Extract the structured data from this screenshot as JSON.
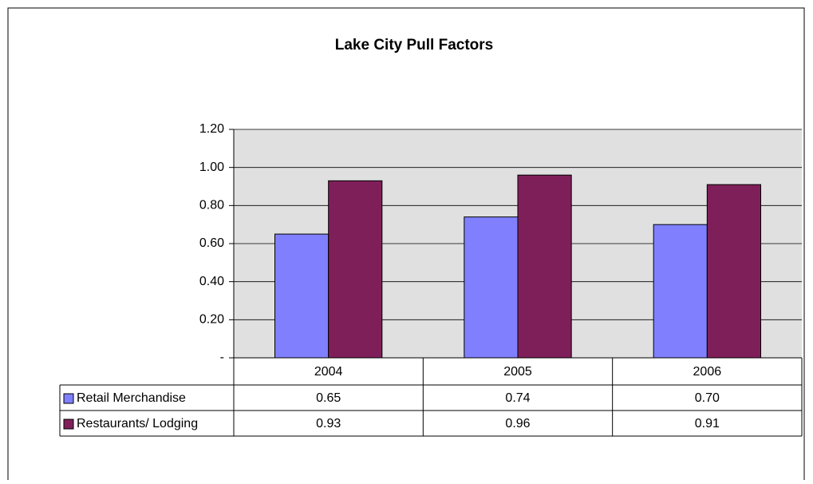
{
  "chart_data": {
    "type": "bar",
    "title": "Lake City Pull Factors",
    "categories": [
      "2004",
      "2005",
      "2006"
    ],
    "series": [
      {
        "name": "Retail Merchandise",
        "color": "#8080ff",
        "values": [
          0.65,
          0.74,
          0.7
        ],
        "value_labels": [
          "0.65",
          "0.74",
          "0.70"
        ]
      },
      {
        "name": "Restaurants/ Lodging",
        "color": "#7f1f5a",
        "values": [
          0.93,
          0.96,
          0.91
        ],
        "value_labels": [
          "0.93",
          "0.96",
          "0.91"
        ]
      }
    ],
    "ylim": [
      0,
      1.2
    ],
    "yticks": [
      {
        "value": 0,
        "label": "-"
      },
      {
        "value": 0.2,
        "label": "0.20"
      },
      {
        "value": 0.4,
        "label": "0.40"
      },
      {
        "value": 0.6,
        "label": "0.60"
      },
      {
        "value": 0.8,
        "label": "0.80"
      },
      {
        "value": 1.0,
        "label": "1.00"
      },
      {
        "value": 1.2,
        "label": "1.20"
      }
    ],
    "grid": true,
    "plot_background": "#e0e0e0"
  }
}
